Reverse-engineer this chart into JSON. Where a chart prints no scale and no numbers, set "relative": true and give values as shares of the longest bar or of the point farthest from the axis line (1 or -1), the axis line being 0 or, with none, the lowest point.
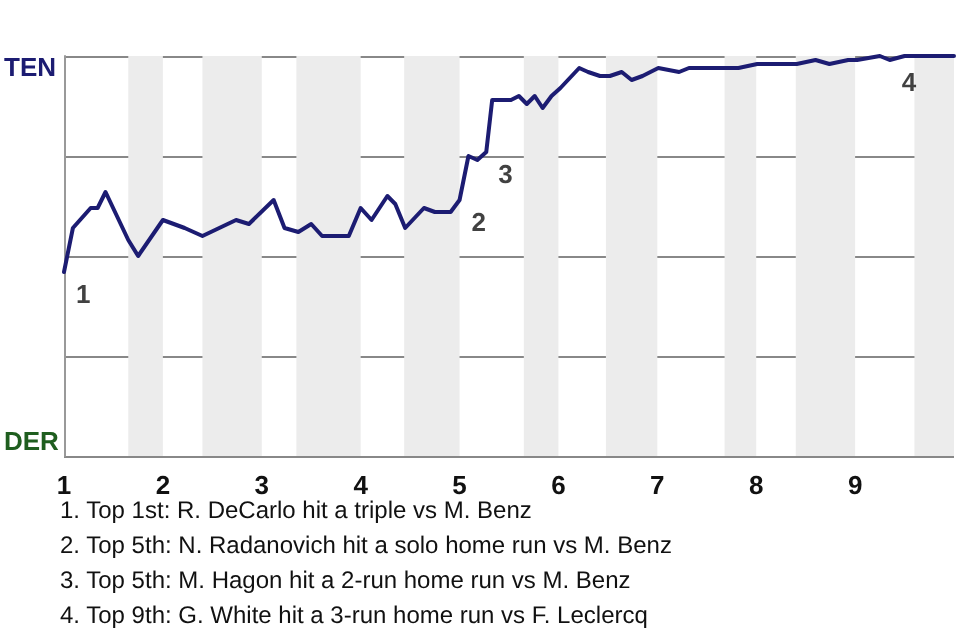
{
  "chart_data": {
    "type": "line",
    "relative": true,
    "x": [
      1,
      1.09,
      1.27,
      1.34,
      1.42,
      1.65,
      1.75,
      2,
      2.22,
      2.4,
      2.74,
      2.87,
      3.12,
      3.23,
      3.37,
      3.5,
      3.61,
      3.88,
      4,
      4.11,
      4.27,
      4.35,
      4.45,
      4.64,
      4.75,
      4.91,
      5,
      5.09,
      5.18,
      5.27,
      5.33,
      5.43,
      5.52,
      5.6,
      5.68,
      5.76,
      5.84,
      5.93,
      6.02,
      6.21,
      6.3,
      6.42,
      6.52,
      6.64,
      6.74,
      6.85,
      7.01,
      7.22,
      7.32,
      7.69,
      7.82,
      8.01,
      8.22,
      8.41,
      8.6,
      8.74,
      8.93,
      9.02,
      9.25,
      9.35,
      9.5,
      9.6,
      10
    ],
    "series": [
      {
        "color": "#1c1c72",
        "values": [
          0.46,
          0.57,
          0.62,
          0.62,
          0.66,
          0.54,
          0.5,
          0.59,
          0.57,
          0.55,
          0.59,
          0.58,
          0.64,
          0.57,
          0.56,
          0.58,
          0.55,
          0.55,
          0.62,
          0.59,
          0.65,
          0.63,
          0.57,
          0.62,
          0.61,
          0.61,
          0.64,
          0.75,
          0.74,
          0.76,
          0.89,
          0.89,
          0.89,
          0.9,
          0.88,
          0.9,
          0.87,
          0.9,
          0.92,
          0.97,
          0.96,
          0.95,
          0.95,
          0.96,
          0.94,
          0.95,
          0.97,
          0.96,
          0.97,
          0.97,
          0.97,
          0.98,
          0.98,
          0.98,
          0.99,
          0.98,
          0.99,
          0.99,
          1,
          0.99,
          1,
          1,
          1
        ]
      }
    ],
    "xlim": [
      1,
      10
    ],
    "xticks": [
      1,
      2,
      3,
      4,
      5,
      6,
      7,
      8,
      9
    ],
    "grid": "y",
    "line_style": "solid",
    "bands": [
      {
        "axis": "x",
        "from": 1.65,
        "to": 2,
        "color": "#ececec"
      },
      {
        "axis": "x",
        "from": 2.4,
        "to": 3,
        "color": "#ececec"
      },
      {
        "axis": "x",
        "from": 3.35,
        "to": 4,
        "color": "#ececec"
      },
      {
        "axis": "x",
        "from": 4.44,
        "to": 5,
        "color": "#ececec"
      },
      {
        "axis": "x",
        "from": 5.65,
        "to": 6,
        "color": "#ececec"
      },
      {
        "axis": "x",
        "from": 6.48,
        "to": 7,
        "color": "#ececec"
      },
      {
        "axis": "x",
        "from": 7.68,
        "to": 8,
        "color": "#ececec"
      },
      {
        "axis": "x",
        "from": 8.4,
        "to": 9,
        "color": "#ececec"
      },
      {
        "axis": "x",
        "from": 9.6,
        "to": 10,
        "color": "#ececec"
      }
    ],
    "annotations": [
      "TEN",
      "DER",
      {
        "text": "1",
        "x": 1,
        "y": 0.46
      },
      {
        "text": "2",
        "x": 5,
        "y": 0.64
      },
      {
        "text": "3",
        "x": 5.27,
        "y": 0.76
      },
      {
        "text": "4",
        "x": 9.35,
        "y": 0.99
      },
      "1. Top 1st: R. DeCarlo hit a triple vs M. Benz",
      "2. Top 5th: N. Radanovich hit a solo home run vs M. Benz",
      "3. Top 5th: M. Hagon hit a 2-run home run vs M. Benz",
      "4. Top 9th: G. White hit a 3-run home run vs F. Leclercq"
    ]
  }
}
